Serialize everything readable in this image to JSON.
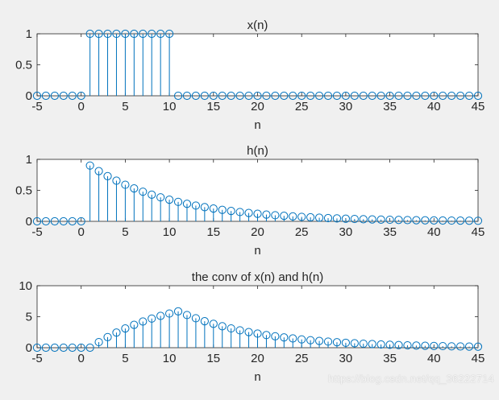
{
  "chart_data": [
    {
      "type": "stem",
      "title": "x(n)",
      "xlabel": "n",
      "ylabel": "",
      "xlim": [
        -5,
        45
      ],
      "ylim": [
        0,
        1
      ],
      "xticks": [
        "-5",
        "0",
        "5",
        "10",
        "15",
        "20",
        "25",
        "30",
        "35",
        "40",
        "45"
      ],
      "yticks": [
        "0",
        "0.5",
        "1"
      ],
      "x": [
        -5,
        -4,
        -3,
        -2,
        -1,
        0,
        1,
        2,
        3,
        4,
        5,
        6,
        7,
        8,
        9,
        10,
        11,
        12,
        13,
        14,
        15,
        16,
        17,
        18,
        19,
        20,
        21,
        22,
        23,
        24,
        25,
        26,
        27,
        28,
        29,
        30,
        31,
        32,
        33,
        34,
        35,
        36,
        37,
        38,
        39,
        40,
        41,
        42,
        43,
        44,
        45
      ],
      "y": [
        0,
        0,
        0,
        0,
        0,
        0,
        1,
        1,
        1,
        1,
        1,
        1,
        1,
        1,
        1,
        1,
        0,
        0,
        0,
        0,
        0,
        0,
        0,
        0,
        0,
        0,
        0,
        0,
        0,
        0,
        0,
        0,
        0,
        0,
        0,
        0,
        0,
        0,
        0,
        0,
        0,
        0,
        0,
        0,
        0,
        0,
        0,
        0,
        0,
        0,
        0
      ]
    },
    {
      "type": "stem",
      "title": "h(n)",
      "xlabel": "n",
      "ylabel": "",
      "xlim": [
        -5,
        45
      ],
      "ylim": [
        0,
        1
      ],
      "xticks": [
        "-5",
        "0",
        "5",
        "10",
        "15",
        "20",
        "25",
        "30",
        "35",
        "40",
        "45"
      ],
      "yticks": [
        "0",
        "0.5",
        "1"
      ],
      "x": [
        -5,
        -4,
        -3,
        -2,
        -1,
        0,
        1,
        2,
        3,
        4,
        5,
        6,
        7,
        8,
        9,
        10,
        11,
        12,
        13,
        14,
        15,
        16,
        17,
        18,
        19,
        20,
        21,
        22,
        23,
        24,
        25,
        26,
        27,
        28,
        29,
        30,
        31,
        32,
        33,
        34,
        35,
        36,
        37,
        38,
        39,
        40,
        41,
        42,
        43,
        44,
        45
      ],
      "y": [
        0,
        0,
        0,
        0,
        0,
        0,
        0.9,
        0.81,
        0.729,
        0.656,
        0.59,
        0.531,
        0.478,
        0.43,
        0.387,
        0.349,
        0.314,
        0.282,
        0.254,
        0.229,
        0.206,
        0.185,
        0.167,
        0.15,
        0.135,
        0.122,
        0.109,
        0.098,
        0.089,
        0.08,
        0.072,
        0.065,
        0.058,
        0.052,
        0.047,
        0.042,
        0.038,
        0.034,
        0.031,
        0.028,
        0.025,
        0.023,
        0.02,
        0.018,
        0.016,
        0.015,
        0.013,
        0.012,
        0.011,
        0.01,
        0.009
      ]
    },
    {
      "type": "stem",
      "title": "the conv of x(n) and h(n)",
      "xlabel": "n",
      "ylabel": "",
      "xlim": [
        -5,
        45
      ],
      "ylim": [
        0,
        10
      ],
      "xticks": [
        "-5",
        "0",
        "5",
        "10",
        "15",
        "20",
        "25",
        "30",
        "35",
        "40",
        "45"
      ],
      "yticks": [
        "0",
        "5",
        "10"
      ],
      "x": [
        -5,
        -4,
        -3,
        -2,
        -1,
        0,
        1,
        2,
        3,
        4,
        5,
        6,
        7,
        8,
        9,
        10,
        11,
        12,
        13,
        14,
        15,
        16,
        17,
        18,
        19,
        20,
        21,
        22,
        23,
        24,
        25,
        26,
        27,
        28,
        29,
        30,
        31,
        32,
        33,
        34,
        35,
        36,
        37,
        38,
        39,
        40,
        41,
        42,
        43,
        44,
        45
      ],
      "y": [
        0,
        0,
        0,
        0,
        0,
        0,
        0,
        0.9,
        1.71,
        2.44,
        3.1,
        3.69,
        4.22,
        4.7,
        5.13,
        5.51,
        5.86,
        5.27,
        4.75,
        4.27,
        3.85,
        3.46,
        3.11,
        2.8,
        2.52,
        2.27,
        2.04,
        1.84,
        1.66,
        1.49,
        1.34,
        1.21,
        1.09,
        0.98,
        0.88,
        0.79,
        0.71,
        0.64,
        0.58,
        0.52,
        0.47,
        0.42,
        0.38,
        0.34,
        0.31,
        0.28,
        0.25,
        0.22,
        0.2,
        0.18,
        0.16
      ]
    }
  ],
  "colors": {
    "stem": "#0072bd",
    "axes_bg": "#ffffff",
    "figure_bg": "#f0f0f0",
    "text": "#262626"
  },
  "watermark": "https://blog.csdn.net/qq_36222714"
}
